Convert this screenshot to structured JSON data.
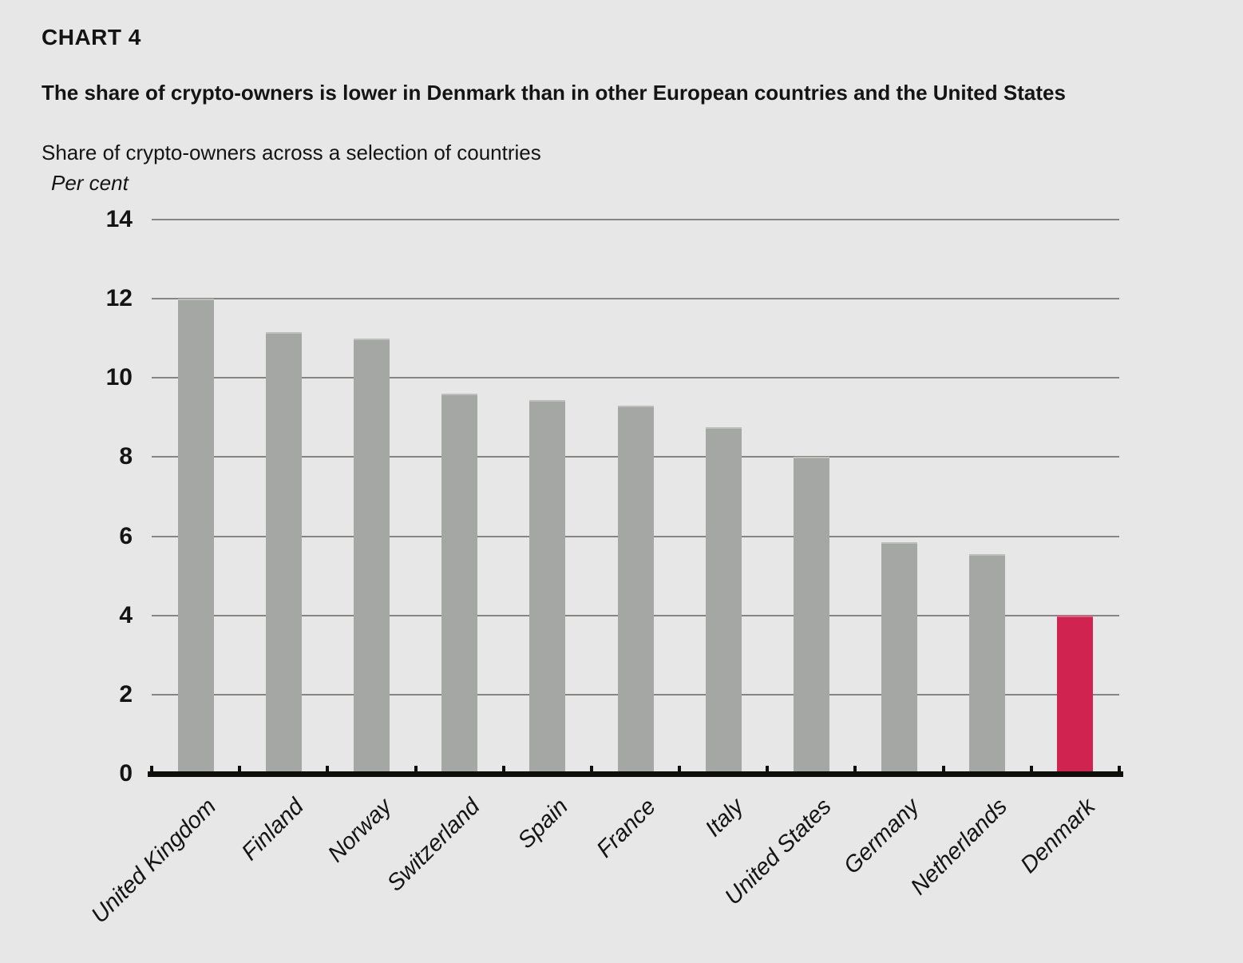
{
  "header": {
    "chart_label": "CHART 4",
    "title": "The share of crypto-owners is lower in Denmark than in other European countries and the United States",
    "subtitle": "Share of crypto-owners across a selection of countries"
  },
  "chart_data": {
    "type": "bar",
    "title": "Share of crypto-owners across a selection of countries",
    "xlabel": "",
    "ylabel": "Per cent",
    "categories": [
      "United Kingdom",
      "Finland",
      "Norway",
      "Switzerland",
      "Spain",
      "France",
      "Italy",
      "United States",
      "Germany",
      "Netherlands",
      "Denmark"
    ],
    "values": [
      12.0,
      11.15,
      11.0,
      9.6,
      9.45,
      9.3,
      8.75,
      8.0,
      5.85,
      5.55,
      4.0
    ],
    "ylim": [
      0,
      14
    ],
    "ytick_step": 2,
    "ytick_labels": [
      "14",
      "12",
      "10",
      "8",
      "6",
      "4",
      "2",
      "0"
    ],
    "grid": "horizontal-only",
    "legend": "none",
    "x_tick_style": "boundary ticks rising above thick black baseline",
    "x_label_rotation_deg": -45,
    "highlight_category": "Denmark",
    "colors": {
      "bar": "#a5a7a4",
      "highlight_bar": "#d02350",
      "background": "#e6e7e6",
      "gridline": "#6d6d6b",
      "axis": "#0e0e0a",
      "text": "#141414"
    }
  }
}
